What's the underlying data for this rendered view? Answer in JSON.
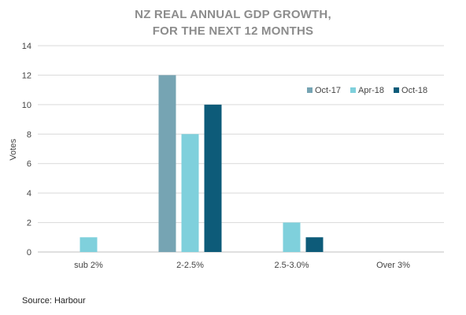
{
  "chart_data": {
    "type": "bar",
    "title": "NZ REAL ANNUAL GDP GROWTH,\nFOR THE NEXT 12 MONTHS",
    "xlabel": "",
    "ylabel": "Votes",
    "categories": [
      "sub 2%",
      "2-2.5%",
      "2.5-3.0%",
      "Over 3%"
    ],
    "series": [
      {
        "name": "Oct-17",
        "values": [
          0,
          12,
          0,
          0
        ],
        "color": "#76a4b3"
      },
      {
        "name": "Apr-18",
        "values": [
          1,
          8,
          2,
          0
        ],
        "color": "#7fd0dc"
      },
      {
        "name": "Oct-18",
        "values": [
          0,
          10,
          1,
          0
        ],
        "color": "#0d5b79"
      }
    ],
    "ylim": [
      0,
      14
    ],
    "yticks": [
      0,
      2,
      4,
      6,
      8,
      10,
      12,
      14
    ],
    "grid": true,
    "legend": "top-right"
  },
  "source": "Source: Harbour"
}
